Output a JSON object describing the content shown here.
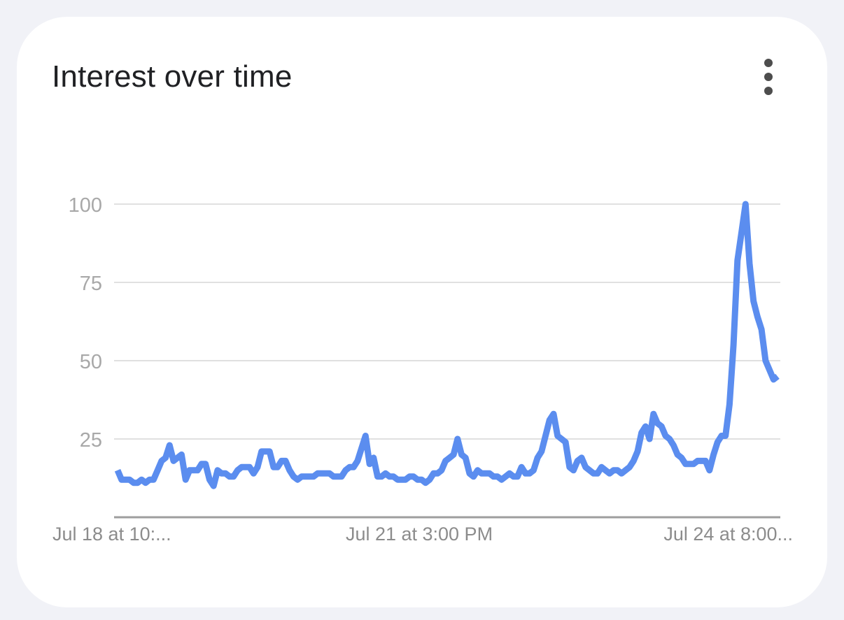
{
  "card": {
    "title": "Interest over time",
    "menu_icon": "more-vert-icon"
  },
  "colors": {
    "line": "#5b8def",
    "grid": "#e0e0e0",
    "axis": "#9e9e9e",
    "background": "#f1f2f7",
    "card": "#ffffff"
  },
  "chart_data": {
    "type": "line",
    "title": "Interest over time",
    "xlabel": "",
    "ylabel": "",
    "ylim": [
      0,
      100
    ],
    "yticks": [
      25,
      50,
      75,
      100
    ],
    "ytick_labels": [
      "25",
      "50",
      "75",
      "100"
    ],
    "xtick_labels": [
      "Jul 18 at 10:...",
      "Jul 21 at 3:00 PM",
      "Jul 24 at 8:00..."
    ],
    "grid": true,
    "legend": "none",
    "series": [
      {
        "values": [
          15,
          12,
          12,
          12,
          11,
          11,
          12,
          11,
          12,
          12,
          15,
          18,
          19,
          23,
          18,
          19,
          20,
          12,
          15,
          15,
          15,
          17,
          17,
          12,
          10,
          15,
          14,
          14,
          13,
          13,
          15,
          16,
          16,
          16,
          14,
          16,
          21,
          21,
          21,
          16,
          16,
          18,
          18,
          15,
          13,
          12,
          13,
          13,
          13,
          13,
          14,
          14,
          14,
          14,
          13,
          13,
          13,
          15,
          16,
          16,
          18,
          22,
          26,
          17,
          19,
          13,
          13,
          14,
          13,
          13,
          12,
          12,
          12,
          13,
          13,
          12,
          12,
          11,
          12,
          14,
          14,
          15,
          18,
          19,
          20,
          25,
          20,
          19,
          14,
          13,
          15,
          14,
          14,
          14,
          13,
          13,
          12,
          13,
          14,
          13,
          13,
          16,
          14,
          14,
          15,
          19,
          21,
          26,
          31,
          33,
          26,
          25,
          24,
          16,
          15,
          18,
          19,
          16,
          15,
          14,
          14,
          16,
          15,
          14,
          15,
          15,
          14,
          15,
          16,
          18,
          21,
          27,
          29,
          25,
          33,
          30,
          29,
          26,
          25,
          23,
          20,
          19,
          17,
          17,
          17,
          18,
          18,
          18,
          15,
          20,
          24,
          26,
          26,
          36,
          55,
          82,
          91,
          100,
          81,
          69,
          64,
          60,
          50,
          47,
          44,
          45
        ]
      }
    ]
  }
}
